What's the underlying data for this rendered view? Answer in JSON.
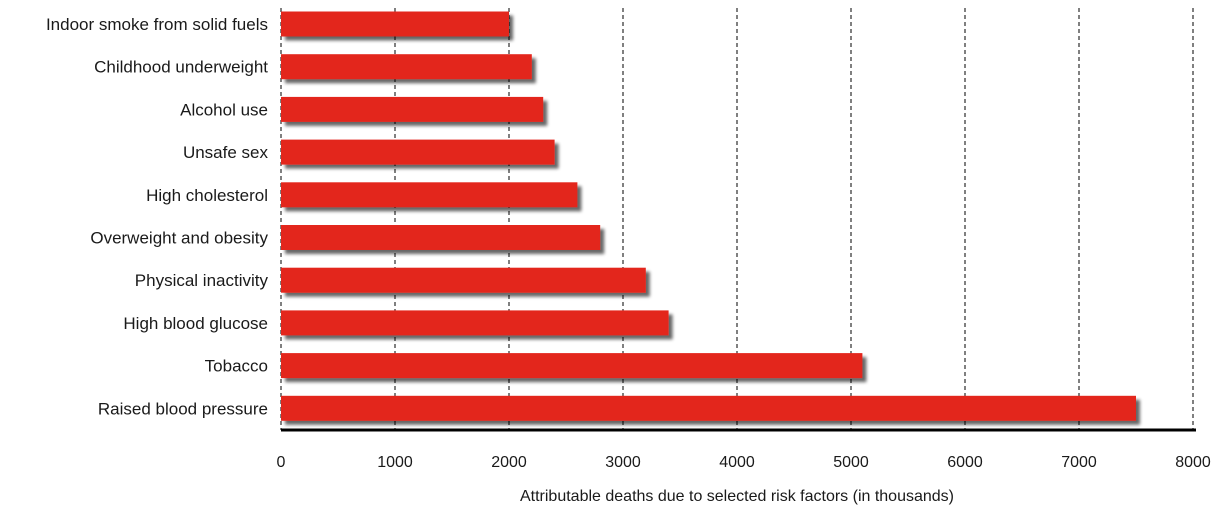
{
  "chart_data": {
    "type": "bar",
    "orientation": "horizontal",
    "title": "",
    "xlabel": "Attributable deaths due to selected risk factors (in thousands)",
    "ylabel": "",
    "categories": [
      "Indoor smoke from solid fuels",
      "Childhood underweight",
      "Alcohol use",
      "Unsafe sex",
      "High cholesterol",
      "Overweight and obesity",
      "Physical inactivity",
      "High blood glucose",
      "Tobacco",
      "Raised blood pressure"
    ],
    "values": [
      2000,
      2200,
      2300,
      2400,
      2600,
      2800,
      3200,
      3400,
      5100,
      7500
    ],
    "xlim": [
      0,
      8000
    ],
    "xticks": [
      "0",
      "1000",
      "2000",
      "3000",
      "4000",
      "5000",
      "6000",
      "7000",
      "8000"
    ],
    "grid": "vertical dashed",
    "colors": {
      "bar": "#e3251f",
      "shadow": "#6b6b6b",
      "axis": "#000000",
      "grid": "#000000"
    }
  }
}
